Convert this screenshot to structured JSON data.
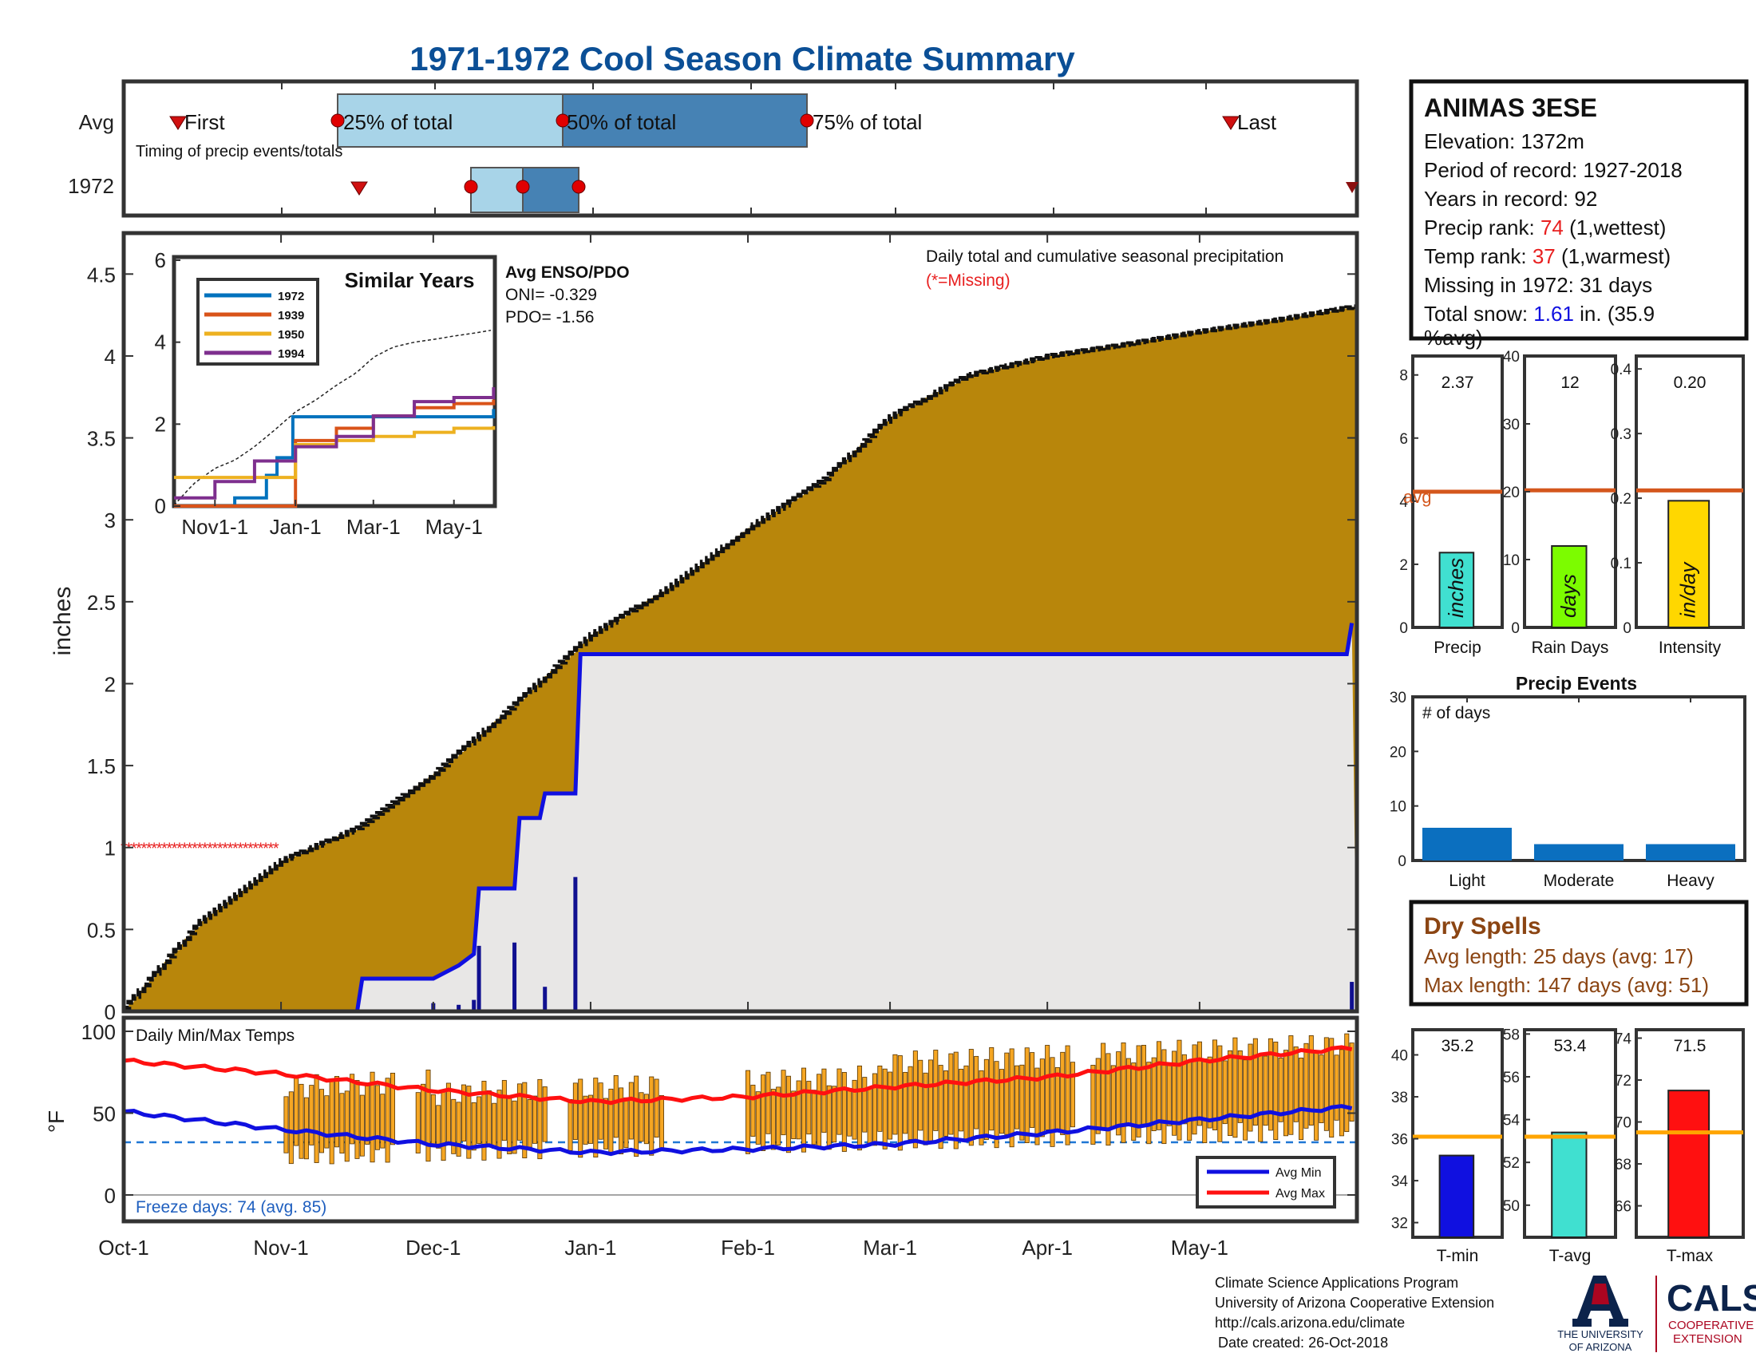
{
  "title": "1971-1972 Cool Season Climate Summary",
  "colors": {
    "title": "#0b4f96",
    "box_light": "#a8d4e8",
    "box_dark": "#4682b4",
    "precip_fill": "#b8860b",
    "season_fill": "#e8e7e6",
    "season_line": "#1010e0",
    "missing": "#e82020",
    "avg_line": "#d4571d",
    "temp_bar": "#f5a623",
    "tmin": "#1010e0",
    "tavg": "#40e0d0",
    "tmax": "#ff1010"
  },
  "timing": {
    "rows": [
      "Avg",
      "1972"
    ],
    "caption": "Timing of precip events/totals",
    "labels": {
      "first": "First",
      "p25": "25% of total",
      "p50": "50% of total",
      "p75": "75% of total",
      "last": "Last"
    }
  },
  "station": {
    "name": "ANIMAS 3ESE",
    "elevation": "Elevation: 1372m",
    "period": "Period of record: 1927-2018",
    "years": "Years in record: 92",
    "precip_rank_label": "Precip rank: ",
    "precip_rank": "74",
    "precip_rank_suffix": " (1,wettest)",
    "temp_rank_label": "Temp rank: ",
    "temp_rank": "37",
    "temp_rank_suffix": " (1,warmest)",
    "missing": "Missing in 1972: 31 days",
    "snow_label": "Total snow: ",
    "snow_value": "1.61",
    "snow_suffix_1": " in. (35.9",
    "snow_suffix_2": "%avg)"
  },
  "main_chart": {
    "ylabel": "inches",
    "annotation": "Daily total and cumulative seasonal precipitation",
    "missing_note": "(*=Missing)",
    "y_ticks": [
      "0",
      "0.5",
      "1",
      "1.5",
      "2",
      "2.5",
      "3",
      "3.5",
      "4",
      "4.5"
    ],
    "x_ticks": [
      "Oct-1",
      "Nov-1",
      "Dec-1",
      "Jan-1",
      "Feb-1",
      "Mar-1",
      "Apr-1",
      "May-1"
    ],
    "enso_title": "Avg ENSO/PDO",
    "oni": "ONI= -0.329",
    "pdo": "PDO= -1.56"
  },
  "inset": {
    "title": "Similar Years",
    "y_ticks": [
      "0",
      "2",
      "4",
      "6"
    ],
    "x_ticks": [
      "Nov1-1",
      "Jan-1",
      "Mar-1",
      "May-1"
    ],
    "legend": [
      "1972",
      "1939",
      "1950",
      "1994"
    ],
    "series_colors": [
      "#0072bd",
      "#d95319",
      "#edb120",
      "#7e2f8e"
    ]
  },
  "side_bars": {
    "precip": {
      "label": "Precip",
      "value": "2.37",
      "unit": "inches",
      "avg_label": "avg",
      "ticks": [
        "0",
        "2",
        "4",
        "6",
        "8"
      ],
      "ymax": 8.6,
      "bar": 2.37,
      "avg": 4.3,
      "color": "#40e0d0"
    },
    "rain_days": {
      "label": "Rain Days",
      "value": "12",
      "unit": "days",
      "ticks": [
        "0",
        "10",
        "20",
        "30",
        "40"
      ],
      "ymax": 40,
      "bar": 12,
      "avg": 20.2,
      "color": "#7cfc00"
    },
    "intensity": {
      "label": "Intensity",
      "value": "0.20",
      "unit": "in/day",
      "ticks": [
        "0",
        "0.1",
        "0.2",
        "0.3",
        "0.4"
      ],
      "ymax": 0.42,
      "bar": 0.196,
      "avg": 0.212,
      "color": "#ffd700"
    }
  },
  "precip_events": {
    "title": "Precip Events",
    "ylabel": "# of days",
    "ticks": [
      "0",
      "10",
      "20",
      "30"
    ],
    "categories": [
      "Light",
      "Moderate",
      "Heavy"
    ],
    "values": [
      6,
      3,
      3
    ],
    "color": "#0b6fbf"
  },
  "dry_spells": {
    "title": "Dry Spells",
    "avg": "Avg length: 25 days (avg: 17)",
    "max": "Max length: 147 days (avg: 51)"
  },
  "temps": {
    "title": "Daily Min/Max Temps",
    "ylabel": "°F",
    "y_ticks": [
      "0",
      "50",
      "100"
    ],
    "freeze": "Freeze days: 74 (avg. 85)",
    "legend_min": "Avg Min",
    "legend_max": "Avg Max"
  },
  "temp_bars": {
    "tmin": {
      "label": "T-min",
      "value": "35.2",
      "ticks": [
        "32",
        "34",
        "36",
        "38",
        "40"
      ],
      "min": 31.3,
      "max": 41.2,
      "bar": 35.2,
      "avg": 36.1
    },
    "tavg": {
      "label": "T-avg",
      "value": "53.4",
      "ticks": [
        "50",
        "52",
        "54",
        "56",
        "58"
      ],
      "min": 48.5,
      "max": 58.2,
      "bar": 53.4,
      "avg": 53.2
    },
    "tmax": {
      "label": "T-max",
      "value": "71.5",
      "ticks": [
        "66",
        "68",
        "70",
        "72",
        "74"
      ],
      "min": 64.5,
      "max": 74.4,
      "bar": 71.5,
      "avg": 69.5
    }
  },
  "footer": {
    "line1": "Climate Science Applications Program",
    "line2": "University of Arizona Cooperative Extension",
    "line3": "http://cals.arizona.edu/climate",
    "line4": "Date created: 26-Oct-2018",
    "logo_ua_1": "THE UNIVERSITY",
    "logo_ua_2": "OF ARIZONA",
    "logo_cals": "CALS",
    "logo_coop_1": "COOPERATIVE",
    "logo_coop_2": "EXTENSION"
  },
  "chart_data": [
    {
      "type": "area",
      "title": "Daily total and cumulative seasonal precipitation",
      "ylabel": "inches",
      "x_dates": [
        "Oct-1",
        "Nov-1",
        "Dec-1",
        "Jan-1",
        "Feb-1",
        "Mar-1",
        "Apr-1",
        "May-1",
        "May-31"
      ],
      "ylim": [
        0,
        4.75
      ],
      "series": [
        {
          "name": "avg cumulative",
          "x": [
            "Oct-1",
            "Oct-16",
            "Nov-1",
            "Nov-16",
            "Dec-1",
            "Dec-16",
            "Jan-1",
            "Jan-16",
            "Feb-1",
            "Feb-16",
            "Mar-1",
            "Mar-16",
            "Apr-1",
            "Apr-16",
            "May-1",
            "May-16",
            "May-31"
          ],
          "y": [
            0.02,
            0.55,
            0.92,
            1.12,
            1.45,
            1.85,
            2.3,
            2.58,
            2.95,
            3.25,
            3.63,
            3.88,
            4.0,
            4.07,
            4.15,
            4.22,
            4.3
          ]
        },
        {
          "name": "1972 cumulative",
          "x": [
            "Oct-1",
            "Nov-16",
            "Nov-17",
            "Dec-1",
            "Dec-6",
            "Dec-9",
            "Dec-10",
            "Dec-17",
            "Dec-18",
            "Dec-22",
            "Dec-23",
            "Dec-29",
            "Dec-30",
            "May-30",
            "May-31"
          ],
          "y": [
            0,
            0,
            0.2,
            0.2,
            0.28,
            0.35,
            0.75,
            0.75,
            1.18,
            1.18,
            1.33,
            1.33,
            2.18,
            2.18,
            2.37
          ]
        },
        {
          "name": "1972 daily",
          "x": [
            "Dec-1",
            "Dec-6",
            "Dec-9",
            "Dec-10",
            "Dec-17",
            "Dec-23",
            "Dec-29",
            "May-31"
          ],
          "y": [
            0.05,
            0.04,
            0.07,
            0.4,
            0.42,
            0.15,
            0.82,
            0.18
          ]
        }
      ],
      "missing": {
        "from": "Oct-1",
        "to": "Oct-31",
        "y": 1
      }
    },
    {
      "type": "line",
      "title": "Similar Years",
      "x_ticks": [
        "Nov1-1",
        "Jan-1",
        "Mar-1",
        "May-1"
      ],
      "ylim": [
        0,
        6
      ],
      "series": [
        {
          "name": "1972",
          "x": [
            "Oct-1",
            "Nov-16",
            "Dec-10",
            "Dec-18",
            "Dec-30",
            "May-31"
          ],
          "y": [
            0,
            0.2,
            0.75,
            1.18,
            2.18,
            2.37
          ]
        },
        {
          "name": "1939",
          "x": [
            "Oct-1",
            "Dec-15",
            "Jan-1",
            "Feb-1",
            "Mar-1",
            "Apr-1",
            "May-1",
            "May-31"
          ],
          "y": [
            0,
            0,
            1.6,
            1.9,
            2.2,
            2.4,
            2.5,
            2.6
          ]
        },
        {
          "name": "1950",
          "x": [
            "Oct-1",
            "Dec-1",
            "Jan-1",
            "Feb-1",
            "Mar-1",
            "Apr-1",
            "May-1",
            "May-31"
          ],
          "y": [
            0.7,
            0.7,
            1.5,
            1.6,
            1.7,
            1.8,
            1.9,
            1.95
          ]
        },
        {
          "name": "1994",
          "x": [
            "Oct-1",
            "Nov-1",
            "Dec-1",
            "Jan-1",
            "Feb-1",
            "Mar-1",
            "Apr-1",
            "May-1",
            "May-31"
          ],
          "y": [
            0.2,
            0.6,
            1.1,
            1.45,
            1.7,
            2.2,
            2.55,
            2.65,
            2.9
          ]
        }
      ]
    },
    {
      "type": "bar",
      "title": "Precip Events",
      "categories": [
        "Light",
        "Moderate",
        "Heavy"
      ],
      "values": [
        6,
        3,
        3
      ],
      "ylim": [
        0,
        30
      ]
    },
    {
      "type": "line",
      "title": "Daily Min/Max Temps",
      "ylim": [
        -10,
        100
      ],
      "series": [
        {
          "name": "Avg Max",
          "x": [
            "Oct-1",
            "Nov-1",
            "Dec-1",
            "Jan-1",
            "Feb-1",
            "Mar-1",
            "Apr-1",
            "May-1",
            "May-31"
          ],
          "y": [
            82,
            74,
            64,
            57,
            60,
            66,
            72,
            82,
            90
          ]
        },
        {
          "name": "Avg Min",
          "x": [
            "Oct-1",
            "Nov-1",
            "Dec-1",
            "Jan-1",
            "Feb-1",
            "Mar-1",
            "Apr-1",
            "May-1",
            "May-31"
          ],
          "y": [
            51,
            40,
            31,
            26,
            28,
            31,
            38,
            46,
            54
          ]
        }
      ],
      "freeze_line": 32
    }
  ]
}
